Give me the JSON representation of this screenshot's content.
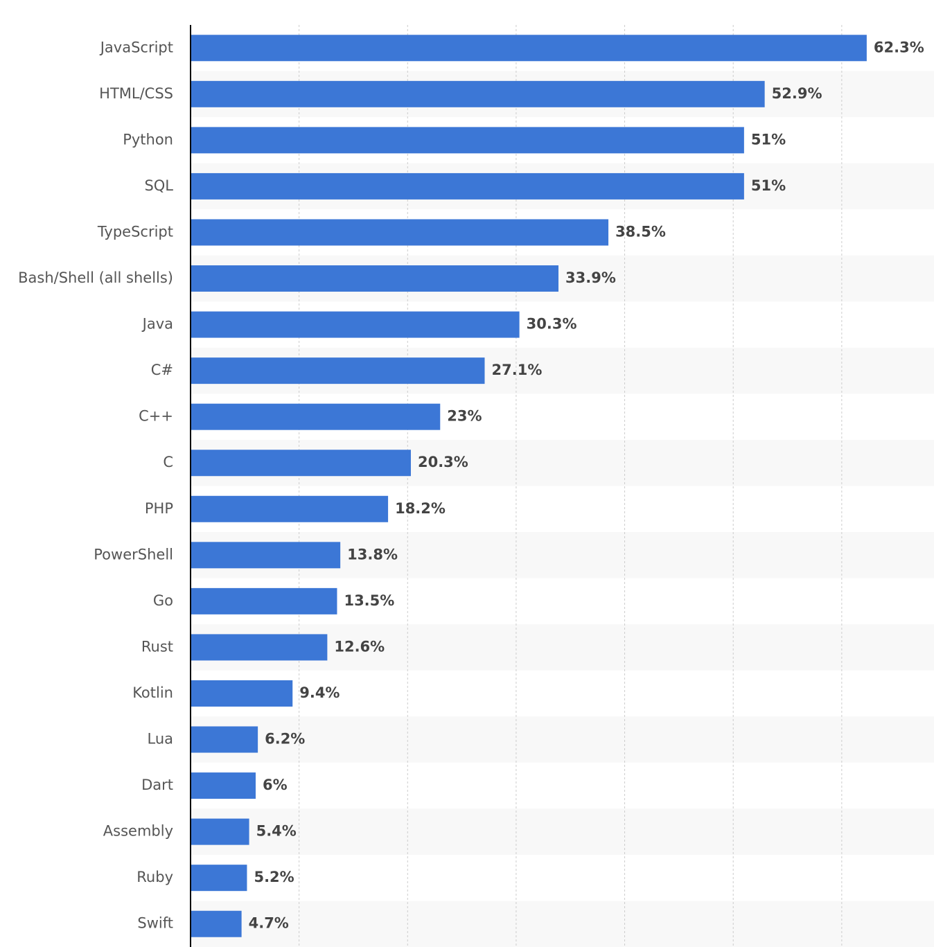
{
  "chart_data": {
    "type": "bar",
    "orientation": "horizontal",
    "categories": [
      "JavaScript",
      "HTML/CSS",
      "Python",
      "SQL",
      "TypeScript",
      "Bash/Shell (all shells)",
      "Java",
      "C#",
      "C++",
      "C",
      "PHP",
      "PowerShell",
      "Go",
      "Rust",
      "Kotlin",
      "Lua",
      "Dart",
      "Assembly",
      "Ruby",
      "Swift"
    ],
    "values": [
      62.3,
      52.9,
      51,
      51,
      38.5,
      33.9,
      30.3,
      27.1,
      23,
      20.3,
      18.2,
      13.8,
      13.5,
      12.6,
      9.4,
      6.2,
      6,
      5.4,
      5.2,
      4.7
    ],
    "value_labels": [
      "62.3%",
      "52.9%",
      "51%",
      "51%",
      "38.5%",
      "33.9%",
      "30.3%",
      "27.1%",
      "23%",
      "20.3%",
      "18.2%",
      "13.8%",
      "13.5%",
      "12.6%",
      "9.4%",
      "6.2%",
      "6%",
      "5.4%",
      "5.2%",
      "4.7%"
    ],
    "color": "#3c77d6",
    "xlim": [
      0,
      68.5
    ],
    "xticks": [
      10,
      20,
      30,
      40,
      50,
      60
    ],
    "grid": true
  }
}
